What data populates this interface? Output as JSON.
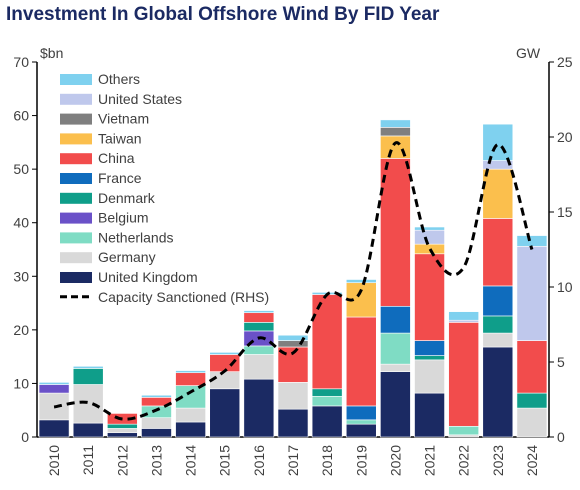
{
  "chart_data": {
    "type": "bar",
    "title": "Investment In Global Offshore Wind By FID Year",
    "ylabel_left": "$bn",
    "ylabel_right": "GW",
    "ylim_left": [
      0,
      70
    ],
    "ylim_right": [
      0,
      25
    ],
    "yticks_left": [
      "0",
      "10",
      "20",
      "30",
      "40",
      "50",
      "60",
      "70"
    ],
    "yticks_right": [
      "0",
      "5",
      "10",
      "15",
      "20",
      "25"
    ],
    "categories": [
      "2010",
      "2011",
      "2012",
      "2013",
      "2014",
      "2015",
      "2016",
      "2017",
      "2018",
      "2019",
      "2020",
      "2021",
      "2022",
      "2023",
      "2024"
    ],
    "stacked": true,
    "grid": false,
    "legend_position": "top-left",
    "series": [
      {
        "name": "United Kingdom",
        "color": "#1b2a63",
        "values": [
          3.2,
          2.6,
          0.8,
          1.6,
          2.8,
          9.0,
          10.8,
          5.2,
          5.8,
          2.4,
          12.2,
          8.2,
          0,
          16.8,
          0
        ]
      },
      {
        "name": "Germany",
        "color": "#d9d9d9",
        "values": [
          5.0,
          7.2,
          0.8,
          2.0,
          2.6,
          3.2,
          4.6,
          5.0,
          0,
          0,
          1.4,
          6.2,
          0.4,
          2.6,
          5.4
        ]
      },
      {
        "name": "Netherlands",
        "color": "#7fdcc4",
        "values": [
          0,
          0,
          0,
          2.2,
          4.2,
          0,
          1.6,
          0,
          1.8,
          0.8,
          5.8,
          0,
          1.6,
          0,
          0
        ]
      },
      {
        "name": "Belgium",
        "color": "#6a51c8",
        "values": [
          1.6,
          0,
          0,
          0,
          0,
          0,
          2.8,
          0,
          0,
          0,
          0,
          0,
          0,
          0,
          0
        ]
      },
      {
        "name": "Denmark",
        "color": "#0f9e8a",
        "values": [
          0,
          3.0,
          0.8,
          0,
          0,
          0,
          1.6,
          0,
          1.4,
          0,
          0,
          0.8,
          0,
          3.2,
          2.8
        ]
      },
      {
        "name": "France",
        "color": "#0f6cbd",
        "values": [
          0,
          0,
          0,
          0,
          0,
          0,
          0,
          0,
          0,
          2.6,
          5.0,
          2.8,
          0,
          5.6,
          0
        ]
      },
      {
        "name": "China",
        "color": "#f24c4c",
        "values": [
          0,
          0,
          2.0,
          1.6,
          2.4,
          3.2,
          1.8,
          6.6,
          17.6,
          16.6,
          27.6,
          16.2,
          19.4,
          12.6,
          9.8
        ]
      },
      {
        "name": "Taiwan",
        "color": "#fbbf4d",
        "values": [
          0,
          0,
          0,
          0,
          0,
          0,
          0,
          0,
          0,
          6.4,
          4.2,
          1.8,
          0,
          9.2,
          0
        ]
      },
      {
        "name": "Vietnam",
        "color": "#7f7f7f",
        "values": [
          0,
          0,
          0,
          0,
          0,
          0,
          0,
          1.2,
          0,
          0,
          1.6,
          0,
          0,
          0,
          0
        ]
      },
      {
        "name": "United States",
        "color": "#bfc8ec",
        "values": [
          0,
          0,
          0,
          0,
          0,
          0,
          0,
          0,
          0,
          0,
          0,
          2.6,
          0.4,
          1.6,
          17.6
        ]
      },
      {
        "name": "Others",
        "color": "#7fd1ef",
        "values": [
          0.4,
          0.4,
          0,
          0.4,
          0.4,
          0.4,
          0.4,
          1.0,
          0.4,
          0.6,
          1.4,
          0.6,
          1.6,
          6.8,
          2.0
        ]
      }
    ],
    "line_series": {
      "name": "Capacity Sanctioned (RHS)",
      "axis": "right",
      "style": "dashed",
      "color": "#000000",
      "values": [
        2.0,
        2.3,
        1.2,
        1.8,
        3.0,
        4.4,
        6.6,
        5.6,
        9.5,
        9.8,
        19.6,
        12.6,
        11.3,
        19.5,
        12.5
      ]
    },
    "legend_order": [
      "Others",
      "United States",
      "Vietnam",
      "Taiwan",
      "China",
      "France",
      "Denmark",
      "Belgium",
      "Netherlands",
      "Germany",
      "United Kingdom",
      "Capacity Sanctioned (RHS)"
    ]
  }
}
